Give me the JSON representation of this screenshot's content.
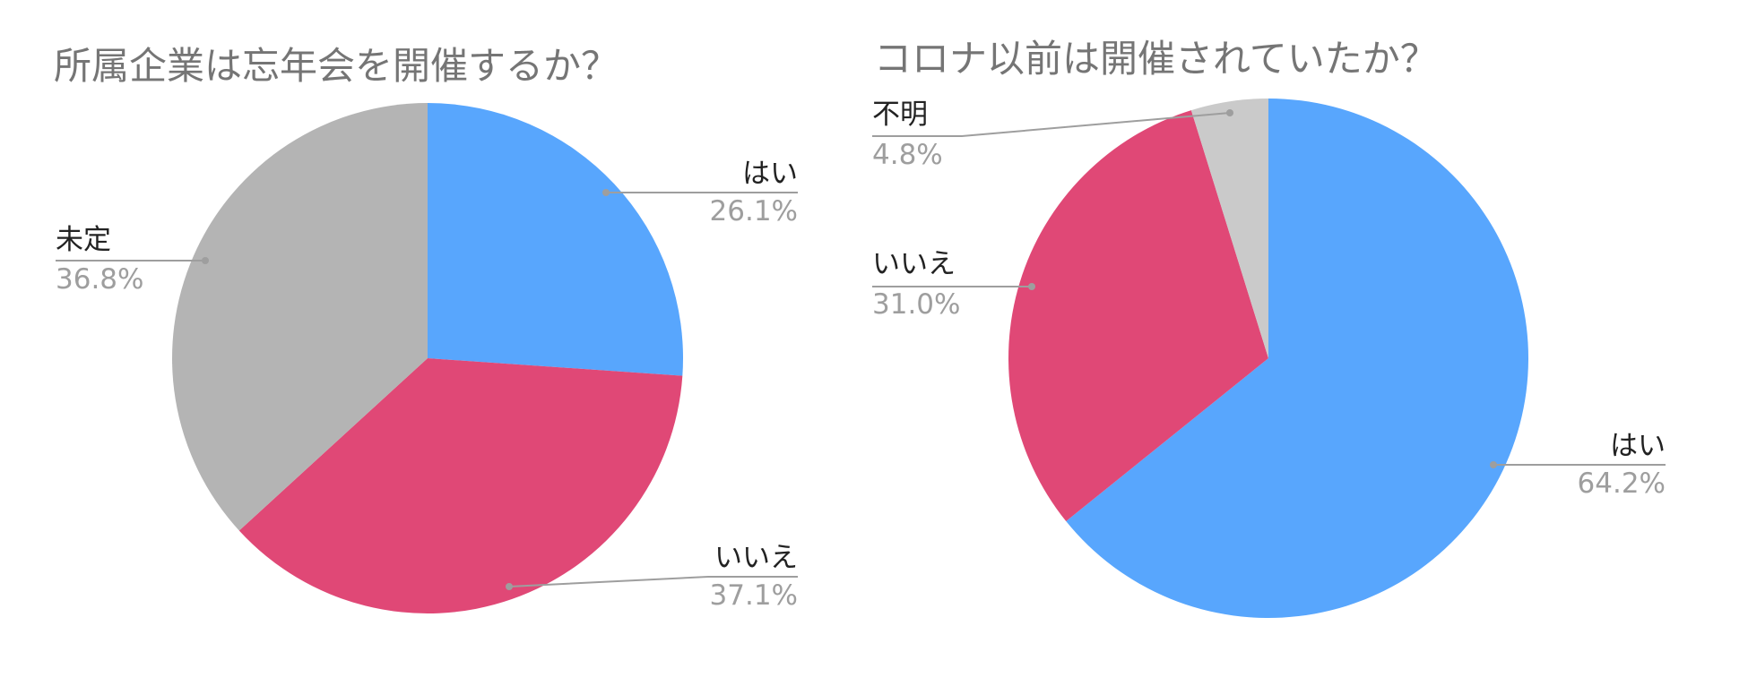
{
  "chart_data": [
    {
      "type": "pie",
      "title": "所属企業は忘年会を開催するか？",
      "slices": [
        {
          "label": "はい",
          "value": 26.1,
          "display": "26.1%",
          "color": "#58a6fd"
        },
        {
          "label": "いいえ",
          "value": 37.1,
          "display": "37.1%",
          "color": "#e04876"
        },
        {
          "label": "未定",
          "value": 36.8,
          "display": "36.8%",
          "color": "#b4b4b4"
        }
      ]
    },
    {
      "type": "pie",
      "title": "コロナ以前は開催されていたか？",
      "slices": [
        {
          "label": "はい",
          "value": 64.2,
          "display": "64.2%",
          "color": "#58a6fd"
        },
        {
          "label": "いいえ",
          "value": 31.0,
          "display": "31.0%",
          "color": "#e04876"
        },
        {
          "label": "不明",
          "value": 4.8,
          "display": "4.8%",
          "color": "#cacaca"
        }
      ]
    }
  ]
}
